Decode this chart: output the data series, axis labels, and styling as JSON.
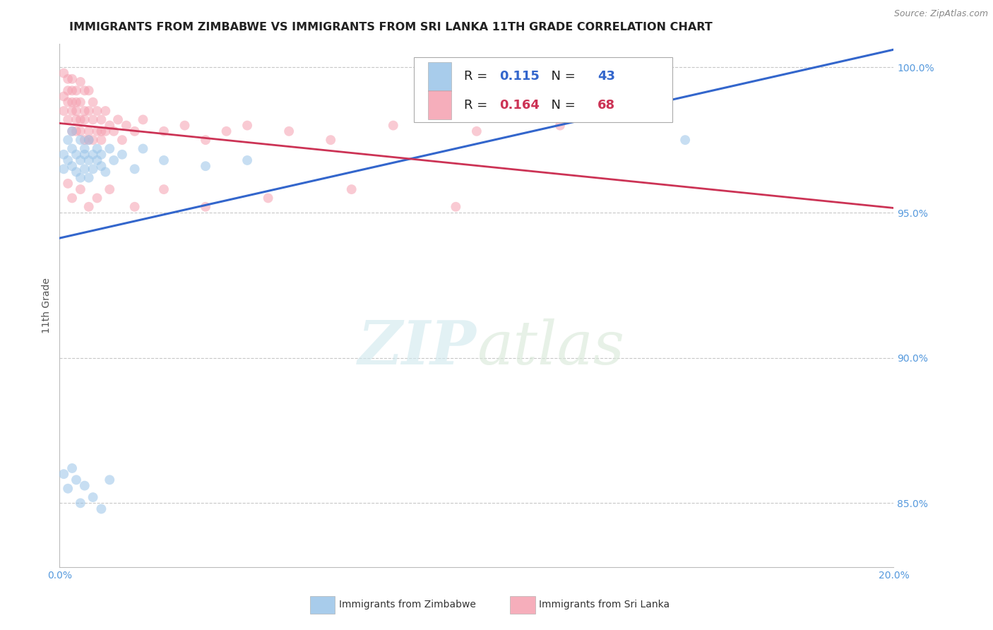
{
  "title": "IMMIGRANTS FROM ZIMBABWE VS IMMIGRANTS FROM SRI LANKA 11TH GRADE CORRELATION CHART",
  "source_text": "Source: ZipAtlas.com",
  "ylabel": "11th Grade",
  "xlim": [
    0.0,
    0.2
  ],
  "ylim": [
    0.828,
    1.008
  ],
  "ytick_positions": [
    0.85,
    0.9,
    0.95,
    1.0
  ],
  "ytick_labels": [
    "85.0%",
    "90.0%",
    "95.0%",
    "100.0%"
  ],
  "xtick_positions": [
    0.0,
    0.02,
    0.04,
    0.06,
    0.08,
    0.1,
    0.12,
    0.14,
    0.16,
    0.18,
    0.2
  ],
  "grid_color": "#c8c8c8",
  "background_color": "#ffffff",
  "watermark_text": "ZIPatlas",
  "legend_R_blue": "0.115",
  "legend_N_blue": "43",
  "legend_R_pink": "0.164",
  "legend_N_pink": "68",
  "zimbabwe_color": "#99c4e8",
  "sri_lanka_color": "#f5a0b0",
  "zimbabwe_trend_color": "#3366cc",
  "sri_lanka_trend_color": "#cc3355",
  "scatter_alpha": 0.55,
  "marker_size": 100,
  "tick_color": "#5599dd",
  "zimbabwe_x": [
    0.001,
    0.001,
    0.002,
    0.002,
    0.003,
    0.003,
    0.003,
    0.004,
    0.004,
    0.005,
    0.005,
    0.005,
    0.006,
    0.006,
    0.006,
    0.007,
    0.007,
    0.007,
    0.008,
    0.008,
    0.009,
    0.009,
    0.01,
    0.01,
    0.011,
    0.012,
    0.013,
    0.015,
    0.018,
    0.02,
    0.025,
    0.035,
    0.045,
    0.001,
    0.002,
    0.003,
    0.004,
    0.005,
    0.006,
    0.008,
    0.01,
    0.012,
    0.15
  ],
  "zimbabwe_y": [
    0.97,
    0.965,
    0.975,
    0.968,
    0.972,
    0.966,
    0.978,
    0.97,
    0.964,
    0.968,
    0.975,
    0.962,
    0.97,
    0.965,
    0.972,
    0.968,
    0.962,
    0.975,
    0.97,
    0.965,
    0.968,
    0.972,
    0.966,
    0.97,
    0.964,
    0.972,
    0.968,
    0.97,
    0.965,
    0.972,
    0.968,
    0.966,
    0.968,
    0.86,
    0.855,
    0.862,
    0.858,
    0.85,
    0.856,
    0.852,
    0.848,
    0.858,
    0.975
  ],
  "sri_lanka_x": [
    0.001,
    0.001,
    0.001,
    0.002,
    0.002,
    0.002,
    0.002,
    0.003,
    0.003,
    0.003,
    0.003,
    0.003,
    0.004,
    0.004,
    0.004,
    0.004,
    0.004,
    0.005,
    0.005,
    0.005,
    0.005,
    0.006,
    0.006,
    0.006,
    0.006,
    0.007,
    0.007,
    0.007,
    0.007,
    0.008,
    0.008,
    0.008,
    0.009,
    0.009,
    0.01,
    0.01,
    0.01,
    0.011,
    0.011,
    0.012,
    0.013,
    0.014,
    0.015,
    0.016,
    0.018,
    0.02,
    0.025,
    0.03,
    0.035,
    0.04,
    0.045,
    0.055,
    0.065,
    0.08,
    0.1,
    0.12,
    0.002,
    0.003,
    0.005,
    0.007,
    0.009,
    0.012,
    0.018,
    0.025,
    0.035,
    0.05,
    0.07,
    0.095
  ],
  "sri_lanka_y": [
    0.99,
    0.998,
    0.985,
    0.992,
    0.988,
    0.982,
    0.996,
    0.985,
    0.992,
    0.978,
    0.996,
    0.988,
    0.985,
    0.978,
    0.992,
    0.982,
    0.988,
    0.988,
    0.982,
    0.995,
    0.978,
    0.985,
    0.992,
    0.975,
    0.982,
    0.978,
    0.985,
    0.992,
    0.975,
    0.982,
    0.975,
    0.988,
    0.978,
    0.985,
    0.978,
    0.982,
    0.975,
    0.978,
    0.985,
    0.98,
    0.978,
    0.982,
    0.975,
    0.98,
    0.978,
    0.982,
    0.978,
    0.98,
    0.975,
    0.978,
    0.98,
    0.978,
    0.975,
    0.98,
    0.978,
    0.98,
    0.96,
    0.955,
    0.958,
    0.952,
    0.955,
    0.958,
    0.952,
    0.958,
    0.952,
    0.955,
    0.958,
    0.952
  ],
  "title_fontsize": 11.5,
  "axis_label_fontsize": 10,
  "tick_fontsize": 10,
  "legend_fontsize": 13,
  "source_fontsize": 9
}
